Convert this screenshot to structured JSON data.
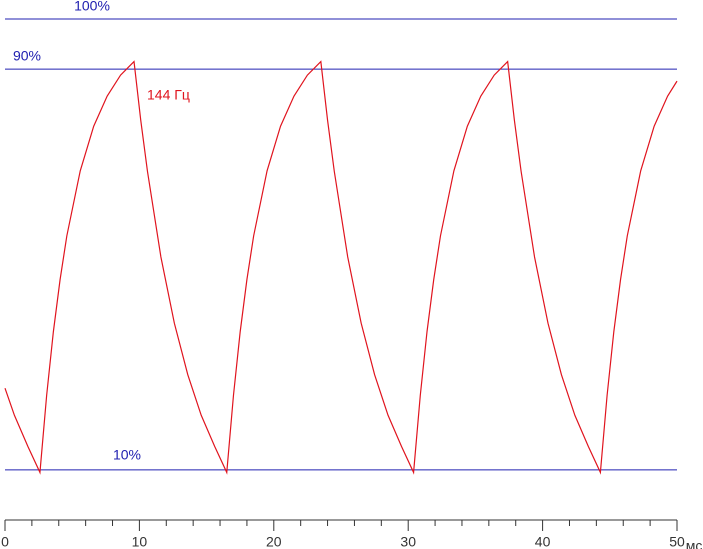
{
  "chart_data": {
    "type": "line",
    "x": [
      0,
      0.7,
      1.7,
      2.6,
      3.1,
      3.6,
      4.1,
      4.6,
      5.6,
      6.6,
      7.6,
      8.6,
      9.6,
      10.1,
      10.6,
      11.6,
      12.6,
      13.6,
      14.6,
      15.6,
      16.5,
      17,
      17.5,
      18,
      18.5,
      19.5,
      20.5,
      21.5,
      22.5,
      23.5,
      24,
      24.5,
      25.5,
      26.5,
      27.5,
      28.5,
      29.5,
      30.4,
      30.9,
      31.4,
      31.9,
      32.4,
      33.4,
      34.4,
      35.4,
      36.4,
      37.4,
      37.9,
      38.4,
      39.4,
      40.4,
      41.4,
      42.4,
      43.4,
      44.3,
      44.8,
      45.3,
      45.8,
      46.3,
      47.3,
      48.3,
      49.3,
      50
    ],
    "series": [
      {
        "name": "144 Гц",
        "color": "#e0141e",
        "values": [
          26.3,
          20.9,
          14.7,
          9.5,
          24.9,
          37.6,
          48.0,
          56.7,
          69.7,
          78.6,
          84.6,
          88.8,
          91.5,
          79.8,
          69.6,
          52.5,
          39.3,
          29.0,
          20.9,
          14.7,
          9.5,
          24.9,
          37.6,
          48.0,
          56.7,
          69.7,
          78.6,
          84.6,
          88.8,
          91.5,
          79.8,
          69.6,
          52.5,
          39.3,
          29.0,
          20.9,
          14.7,
          9.5,
          24.9,
          37.6,
          48.0,
          56.7,
          69.7,
          78.6,
          84.6,
          88.8,
          91.5,
          79.8,
          69.6,
          52.5,
          39.3,
          29.0,
          20.9,
          14.7,
          9.5,
          24.9,
          37.6,
          48.0,
          56.7,
          69.7,
          78.6,
          84.6,
          87.6
        ]
      }
    ],
    "xlim": [
      0,
      50
    ],
    "xticks": [
      0,
      10,
      20,
      30,
      40,
      50
    ],
    "minor_tick_step": 2,
    "xlabel": "мс",
    "ylim": [
      0,
      100
    ],
    "reference_lines": [
      {
        "value": 100,
        "label": "100%"
      },
      {
        "value": 90,
        "label": "90%"
      },
      {
        "value": 10,
        "label": "10%"
      }
    ],
    "reference_color": "#2020b0"
  }
}
